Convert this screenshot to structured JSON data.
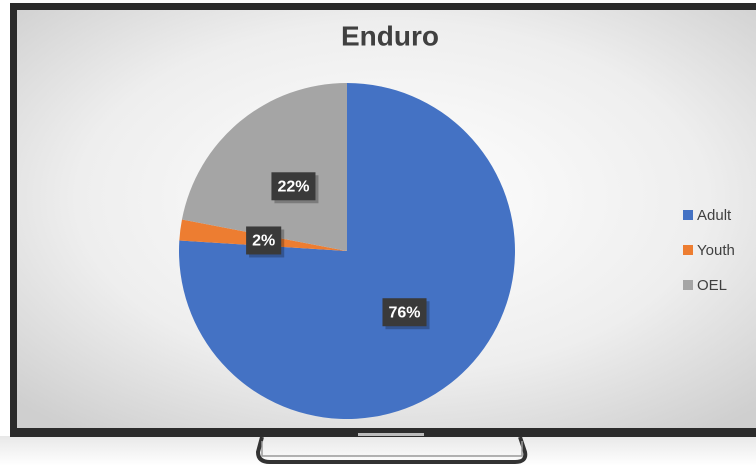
{
  "chart_data": {
    "type": "pie",
    "title": "Enduro",
    "categories": [
      "Adult",
      "Youth",
      "OEL"
    ],
    "values": [
      76,
      2,
      22
    ],
    "value_labels": [
      "76%",
      "2%",
      "22%"
    ],
    "colors": [
      "#4472c4",
      "#ed7d31",
      "#a5a5a5"
    ],
    "legend": "right"
  }
}
